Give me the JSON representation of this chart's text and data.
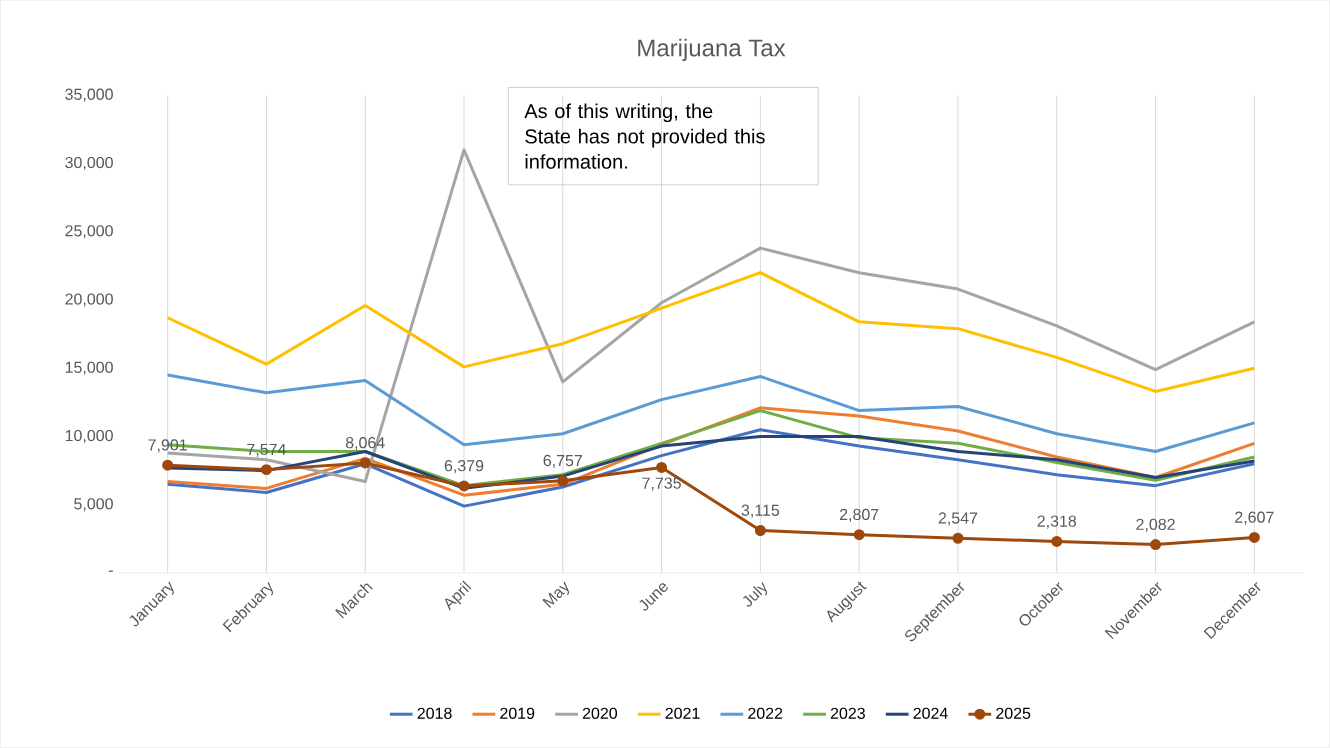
{
  "chart_data": {
    "type": "line",
    "title": "Marijuana Tax",
    "categories": [
      "January",
      "February",
      "March",
      "April",
      "May",
      "June",
      "July",
      "August",
      "September",
      "October",
      "November",
      "December"
    ],
    "ylim": [
      0,
      35000
    ],
    "yticks": [
      {
        "value": 0,
        "label": "-"
      },
      {
        "value": 5000,
        "label": "5,000"
      },
      {
        "value": 10000,
        "label": "10,000"
      },
      {
        "value": 15000,
        "label": "15,000"
      },
      {
        "value": 20000,
        "label": "20,000"
      },
      {
        "value": 25000,
        "label": "25,000"
      },
      {
        "value": 30000,
        "label": "30,000"
      },
      {
        "value": 35000,
        "label": "35,000"
      }
    ],
    "grid": "x",
    "legend": "bottom",
    "annotations": [
      "As of this writing, the State has not provided this information."
    ],
    "series": [
      {
        "name": "2018",
        "color": "#4472c4",
        "values": [
          6500,
          5900,
          8000,
          4900,
          6300,
          8600,
          10500,
          9300,
          8300,
          7200,
          6400,
          8000
        ]
      },
      {
        "name": "2019",
        "color": "#ed7d31",
        "values": [
          6700,
          6200,
          8400,
          5700,
          6500,
          9400,
          12100,
          11500,
          10400,
          8500,
          7000,
          9500
        ]
      },
      {
        "name": "2020",
        "color": "#a5a5a5",
        "values": [
          8800,
          8300,
          6700,
          31000,
          14000,
          19800,
          23800,
          22000,
          20800,
          18100,
          14900,
          18400
        ]
      },
      {
        "name": "2021",
        "color": "#ffc000",
        "values": [
          18700,
          15300,
          19600,
          15100,
          16800,
          19400,
          22000,
          18400,
          17900,
          15800,
          13300,
          15000
        ]
      },
      {
        "name": "2022",
        "color": "#5b9bd5",
        "values": [
          14500,
          13200,
          14100,
          9400,
          10200,
          12700,
          14400,
          11900,
          12200,
          10200,
          8900,
          11000
        ]
      },
      {
        "name": "2023",
        "color": "#70ad47",
        "values": [
          9400,
          8900,
          8900,
          6400,
          7200,
          9500,
          11900,
          9900,
          9500,
          8100,
          6800,
          8500
        ]
      },
      {
        "name": "2024",
        "color": "#264478",
        "values": [
          7700,
          7500,
          8900,
          6200,
          7100,
          9300,
          10000,
          10000,
          8900,
          8300,
          7000,
          8200
        ]
      },
      {
        "name": "2025",
        "color": "#9e480e",
        "marker": "circle",
        "values": [
          7901,
          7574,
          8064,
          6379,
          6757,
          7735,
          3115,
          2807,
          2547,
          2318,
          2082,
          2607
        ],
        "value_labels": [
          "7,901",
          "7,574",
          "8,064",
          "6,379",
          "6,757",
          "7,735",
          "3,115",
          "2,807",
          "2,547",
          "2,318",
          "2,082",
          "2,607"
        ]
      }
    ]
  }
}
